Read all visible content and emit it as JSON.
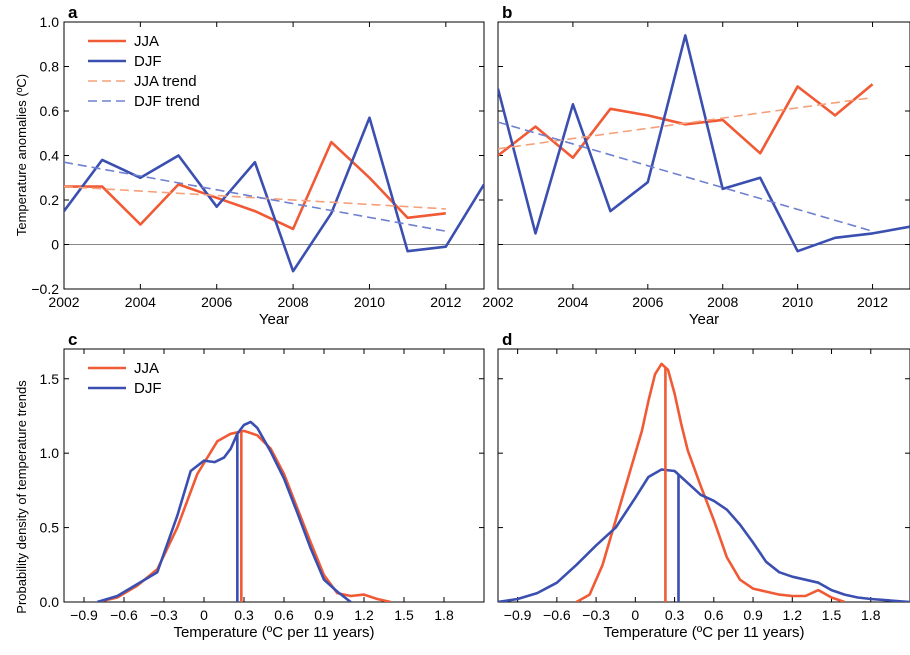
{
  "colors": {
    "jja": "#f05a35",
    "djf": "#3b4fb0"
  },
  "ylabel_top": "Temperature anomalies (ºC)",
  "ylabel_bottom": "Probability density of temperature trends",
  "chart_data": [
    {
      "panel": "a",
      "type": "line",
      "xlabel": "Year",
      "ylabel": "Temperature anomalies (ºC)",
      "xlim": [
        2002,
        2013
      ],
      "ylim": [
        -0.2,
        1.0
      ],
      "xticks": [
        2002,
        2004,
        2006,
        2008,
        2010,
        2012
      ],
      "yticks": [
        -0.2,
        0,
        0.2,
        0.4,
        0.6,
        0.8,
        1.0
      ],
      "ytick_labels": [
        "−0.2",
        "0",
        "0.2",
        "0.4",
        "0.6",
        "0.8",
        "1.0"
      ],
      "zero_line": true,
      "legend": {
        "position": "top-left",
        "entries": [
          "JJA",
          "DJF",
          "JJA trend",
          "DJF trend"
        ]
      },
      "series": [
        {
          "name": "JJA",
          "style": "solid",
          "color": "#f05a35",
          "x": [
            2002,
            2003,
            2004,
            2005,
            2006,
            2007,
            2008,
            2009,
            2010,
            2011,
            2012
          ],
          "y": [
            0.26,
            0.26,
            0.09,
            0.27,
            0.21,
            0.15,
            0.07,
            0.46,
            0.3,
            0.12,
            0.14
          ]
        },
        {
          "name": "DJF",
          "style": "solid",
          "color": "#3b4fb0",
          "x": [
            2002,
            2003,
            2004,
            2005,
            2006,
            2007,
            2008,
            2009,
            2010,
            2011,
            2012,
            2013
          ],
          "y": [
            0.15,
            0.38,
            0.3,
            0.4,
            0.17,
            0.37,
            -0.12,
            0.14,
            0.57,
            -0.03,
            -0.01,
            0.27
          ]
        },
        {
          "name": "JJA trend",
          "style": "dashed",
          "color": "#f5a07a",
          "x": [
            2002,
            2012
          ],
          "y": [
            0.26,
            0.16
          ]
        },
        {
          "name": "DJF trend",
          "style": "dashed",
          "color": "#6f80cf",
          "x": [
            2002,
            2012
          ],
          "y": [
            0.37,
            0.06
          ]
        }
      ]
    },
    {
      "panel": "b",
      "type": "line",
      "xlabel": "Year",
      "ylabel": "",
      "xlim": [
        2002,
        2013
      ],
      "ylim": [
        -0.2,
        1.0
      ],
      "xticks": [
        2002,
        2004,
        2006,
        2008,
        2010,
        2012
      ],
      "yticks": [
        -0.2,
        0,
        0.2,
        0.4,
        0.6,
        0.8,
        1.0
      ],
      "zero_line": true,
      "series": [
        {
          "name": "JJA",
          "style": "solid",
          "color": "#f05a35",
          "x": [
            2002,
            2003,
            2004,
            2005,
            2006,
            2007,
            2008,
            2009,
            2010,
            2011,
            2012
          ],
          "y": [
            0.4,
            0.53,
            0.39,
            0.61,
            0.58,
            0.54,
            0.56,
            0.41,
            0.71,
            0.58,
            0.72
          ]
        },
        {
          "name": "DJF",
          "style": "solid",
          "color": "#3b4fb0",
          "x": [
            2002,
            2003,
            2004,
            2005,
            2006,
            2007,
            2008,
            2009,
            2010,
            2011,
            2012,
            2013
          ],
          "y": [
            0.7,
            0.05,
            0.63,
            0.15,
            0.28,
            0.94,
            0.25,
            0.3,
            -0.03,
            0.03,
            0.05,
            0.08
          ]
        },
        {
          "name": "JJA trend",
          "style": "dashed",
          "color": "#f5a07a",
          "x": [
            2002,
            2012
          ],
          "y": [
            0.43,
            0.66
          ]
        },
        {
          "name": "DJF trend",
          "style": "dashed",
          "color": "#6f80cf",
          "x": [
            2002,
            2012
          ],
          "y": [
            0.55,
            0.06
          ]
        }
      ]
    },
    {
      "panel": "c",
      "type": "line",
      "xlabel": "Temperature (ºC per 11 years)",
      "ylabel": "Probability density of temperature trends",
      "xlim": [
        -1.05,
        2.1
      ],
      "ylim": [
        0,
        1.7
      ],
      "xticks": [
        -0.9,
        -0.6,
        -0.3,
        0,
        0.3,
        0.6,
        0.9,
        1.2,
        1.5,
        1.8
      ],
      "xtick_labels": [
        "−0.9",
        "−0.6",
        "−0.3",
        "0",
        "0.3",
        "0.6",
        "0.9",
        "1.2",
        "1.5",
        "1.8"
      ],
      "yticks": [
        0.0,
        0.5,
        1.0,
        1.5
      ],
      "ytick_labels": [
        "0.0",
        "0.5",
        "1.0",
        "1.5"
      ],
      "legend": {
        "position": "top-left",
        "entries": [
          "JJA",
          "DJF"
        ]
      },
      "series": [
        {
          "name": "JJA",
          "color": "#f05a35",
          "x": [
            -0.8,
            -0.65,
            -0.5,
            -0.35,
            -0.2,
            -0.05,
            0.1,
            0.2,
            0.3,
            0.4,
            0.5,
            0.6,
            0.7,
            0.8,
            0.9,
            1.0,
            1.1,
            1.2,
            1.3,
            1.4
          ],
          "y": [
            0.0,
            0.03,
            0.11,
            0.22,
            0.5,
            0.86,
            1.08,
            1.13,
            1.15,
            1.12,
            1.03,
            0.86,
            0.63,
            0.4,
            0.18,
            0.06,
            0.04,
            0.05,
            0.02,
            0.0
          ],
          "mean": 0.28
        },
        {
          "name": "DJF",
          "color": "#3b4fb0",
          "x": [
            -0.8,
            -0.65,
            -0.5,
            -0.35,
            -0.2,
            -0.1,
            0.0,
            0.08,
            0.15,
            0.2,
            0.25,
            0.3,
            0.35,
            0.4,
            0.5,
            0.6,
            0.7,
            0.8,
            0.9,
            1.0,
            1.1
          ],
          "y": [
            0.0,
            0.04,
            0.12,
            0.2,
            0.58,
            0.88,
            0.95,
            0.94,
            0.97,
            1.03,
            1.13,
            1.19,
            1.21,
            1.17,
            1.01,
            0.83,
            0.6,
            0.36,
            0.15,
            0.07,
            0.0
          ],
          "mean": 0.25
        }
      ]
    },
    {
      "panel": "d",
      "type": "line",
      "xlabel": "Temperature (ºC per 11 years)",
      "ylabel": "",
      "xlim": [
        -1.05,
        2.1
      ],
      "ylim": [
        0,
        1.7
      ],
      "xticks": [
        -0.9,
        -0.6,
        -0.3,
        0,
        0.3,
        0.6,
        0.9,
        1.2,
        1.5,
        1.8
      ],
      "xtick_labels": [
        "−0.9",
        "−0.6",
        "−0.3",
        "0",
        "0.3",
        "0.6",
        "0.9",
        "1.2",
        "1.5",
        "1.8"
      ],
      "yticks": [
        0.0,
        0.5,
        1.0,
        1.5
      ],
      "series": [
        {
          "name": "JJA",
          "color": "#f05a35",
          "x": [
            -0.45,
            -0.35,
            -0.25,
            -0.15,
            -0.05,
            0.05,
            0.1,
            0.15,
            0.2,
            0.25,
            0.3,
            0.35,
            0.4,
            0.5,
            0.6,
            0.7,
            0.8,
            0.9,
            1.0,
            1.1,
            1.2,
            1.3,
            1.4,
            1.5,
            1.6
          ],
          "y": [
            0.0,
            0.05,
            0.25,
            0.55,
            0.85,
            1.15,
            1.35,
            1.53,
            1.6,
            1.56,
            1.4,
            1.2,
            1.02,
            0.78,
            0.55,
            0.3,
            0.15,
            0.09,
            0.07,
            0.05,
            0.04,
            0.04,
            0.08,
            0.03,
            0.0
          ]
        },
        {
          "name": "DJF",
          "color": "#3b4fb0",
          "x": [
            -1.05,
            -0.9,
            -0.75,
            -0.6,
            -0.45,
            -0.3,
            -0.15,
            0.0,
            0.1,
            0.2,
            0.3,
            0.4,
            0.5,
            0.6,
            0.7,
            0.8,
            0.9,
            1.0,
            1.1,
            1.2,
            1.3,
            1.4,
            1.5,
            1.6,
            1.7,
            1.8,
            1.95,
            2.1
          ],
          "y": [
            0.0,
            0.02,
            0.06,
            0.13,
            0.25,
            0.38,
            0.5,
            0.7,
            0.84,
            0.89,
            0.88,
            0.8,
            0.72,
            0.68,
            0.62,
            0.52,
            0.4,
            0.27,
            0.2,
            0.17,
            0.15,
            0.13,
            0.08,
            0.05,
            0.03,
            0.02,
            0.01,
            0.0
          ]
        }
      ],
      "markers": [
        {
          "series": "JJA",
          "x": 0.23
        },
        {
          "series": "DJF",
          "x": 0.33
        }
      ]
    }
  ]
}
